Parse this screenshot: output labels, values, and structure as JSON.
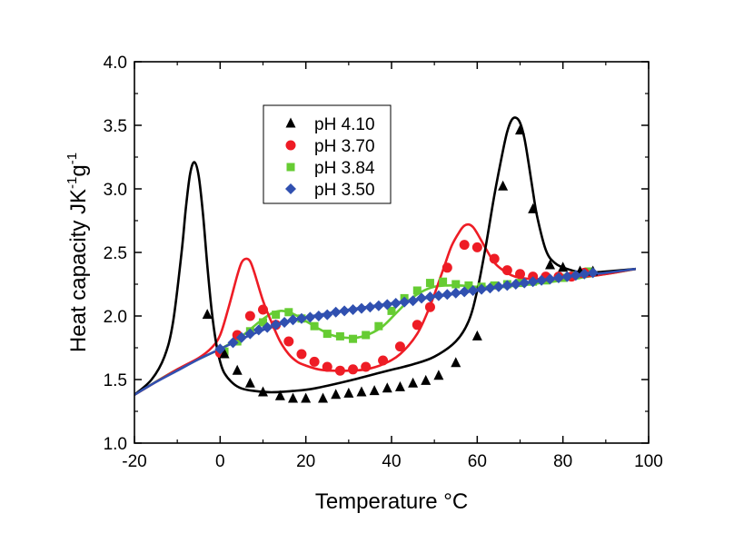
{
  "chart_data": {
    "type": "scatter",
    "title": "",
    "xlabel_main": "Temperature ",
    "xlabel_unit": "°C",
    "ylabel_main": "Heat capacity JK",
    "ylabel_exp1": "-1",
    "ylabel_mid": "g",
    "ylabel_exp2": "-1",
    "xlim": [
      -20,
      100
    ],
    "ylim": [
      1.0,
      4.0
    ],
    "xticks": [
      -20,
      0,
      20,
      40,
      60,
      80,
      100
    ],
    "yticks": [
      1.0,
      1.5,
      2.0,
      2.5,
      3.0,
      3.5,
      4.0
    ],
    "xtick_labels": [
      "-20",
      "0",
      "20",
      "40",
      "60",
      "80",
      "100"
    ],
    "ytick_labels": [
      "1.0",
      "1.5",
      "2.0",
      "2.5",
      "3.0",
      "3.5",
      "4.0"
    ],
    "grid": false,
    "legend_position": "top-left",
    "series": [
      {
        "name": "pH 4.10",
        "marker": "triangle",
        "color": "#000000",
        "x": [
          -3,
          1,
          4,
          7,
          10,
          14,
          17,
          20,
          24,
          27,
          30,
          33,
          36,
          39,
          42,
          45,
          48,
          51,
          55,
          60,
          66,
          70,
          73,
          77,
          80,
          84,
          87
        ],
        "y": [
          2.01,
          1.7,
          1.57,
          1.47,
          1.4,
          1.37,
          1.35,
          1.35,
          1.35,
          1.38,
          1.39,
          1.4,
          1.41,
          1.43,
          1.44,
          1.47,
          1.49,
          1.53,
          1.63,
          1.84,
          3.02,
          3.46,
          2.84,
          2.4,
          2.38,
          2.35,
          2.35
        ],
        "fit_x": [
          -20,
          -16,
          -13,
          -11,
          -9,
          -8,
          -7,
          -6,
          -5,
          -4,
          -3,
          -2,
          -1,
          0,
          1,
          3,
          5,
          8,
          12,
          17,
          22,
          30,
          38,
          45,
          50,
          55,
          58,
          60,
          62,
          64,
          66,
          67,
          68,
          69,
          70,
          71,
          72,
          73,
          74,
          76,
          78,
          81,
          85,
          90,
          97
        ],
        "fit_y": [
          1.38,
          1.5,
          1.68,
          1.95,
          2.5,
          2.85,
          3.12,
          3.21,
          3.1,
          2.8,
          2.4,
          2.05,
          1.8,
          1.64,
          1.55,
          1.47,
          1.43,
          1.41,
          1.4,
          1.41,
          1.43,
          1.49,
          1.56,
          1.62,
          1.68,
          1.8,
          1.96,
          2.2,
          2.55,
          2.95,
          3.3,
          3.45,
          3.54,
          3.56,
          3.52,
          3.4,
          3.2,
          2.98,
          2.78,
          2.52,
          2.42,
          2.37,
          2.34,
          2.35,
          2.37
        ]
      },
      {
        "name": "pH 3.70",
        "marker": "circle",
        "color": "#ee1c25",
        "x": [
          0,
          4,
          7,
          10,
          13,
          16,
          19,
          22,
          25,
          28,
          31,
          34,
          38,
          42,
          46,
          49,
          53,
          57,
          60,
          64,
          67,
          70,
          73,
          76,
          79,
          82,
          85
        ],
        "y": [
          1.71,
          1.85,
          2.0,
          2.05,
          1.93,
          1.8,
          1.7,
          1.64,
          1.6,
          1.57,
          1.58,
          1.6,
          1.65,
          1.76,
          1.93,
          2.07,
          2.38,
          2.56,
          2.54,
          2.45,
          2.36,
          2.33,
          2.31,
          2.31,
          2.31,
          2.31,
          2.34
        ],
        "fit_x": [
          -20,
          -10,
          -5,
          -2,
          0,
          2,
          4,
          5,
          6,
          7,
          8,
          10,
          12,
          14,
          16,
          18,
          20,
          23,
          26,
          30,
          34,
          38,
          42,
          46,
          49,
          52,
          54,
          56,
          57,
          58,
          59,
          60,
          62,
          64,
          66,
          68,
          70,
          74,
          80,
          88,
          97
        ],
        "fit_y": [
          1.38,
          1.58,
          1.67,
          1.75,
          1.85,
          2.07,
          2.32,
          2.42,
          2.45,
          2.43,
          2.34,
          2.12,
          1.95,
          1.8,
          1.7,
          1.64,
          1.61,
          1.58,
          1.57,
          1.57,
          1.58,
          1.62,
          1.7,
          1.86,
          2.08,
          2.36,
          2.55,
          2.67,
          2.71,
          2.72,
          2.7,
          2.65,
          2.53,
          2.42,
          2.36,
          2.32,
          2.3,
          2.29,
          2.3,
          2.32,
          2.37
        ]
      },
      {
        "name": "pH 3.84",
        "marker": "square",
        "color": "#66cc33",
        "x": [
          1,
          4,
          7,
          10,
          13,
          16,
          19,
          22,
          25,
          28,
          31,
          34,
          37,
          40,
          43,
          46,
          49,
          52,
          55,
          58,
          61,
          64,
          67,
          70,
          73,
          76,
          80,
          83,
          86
        ],
        "y": [
          1.72,
          1.8,
          1.88,
          1.95,
          2.01,
          2.03,
          1.98,
          1.92,
          1.86,
          1.84,
          1.82,
          1.85,
          1.92,
          2.04,
          2.14,
          2.2,
          2.26,
          2.27,
          2.25,
          2.24,
          2.23,
          2.24,
          2.25,
          2.26,
          2.27,
          2.28,
          2.3,
          2.32,
          2.35
        ],
        "fit_x": [
          -20,
          -10,
          0,
          5,
          9,
          12,
          14,
          16,
          18,
          20,
          23,
          26,
          29,
          32,
          35,
          38,
          41,
          44,
          47,
          50,
          53,
          56,
          60,
          65,
          70,
          75,
          80,
          86,
          92,
          97
        ],
        "fit_y": [
          1.38,
          1.58,
          1.74,
          1.84,
          1.95,
          2.02,
          2.04,
          2.03,
          2.0,
          1.96,
          1.9,
          1.85,
          1.83,
          1.83,
          1.86,
          1.92,
          2.02,
          2.12,
          2.19,
          2.23,
          2.24,
          2.24,
          2.23,
          2.23,
          2.24,
          2.26,
          2.28,
          2.31,
          2.34,
          2.37
        ]
      },
      {
        "name": "pH 3.50",
        "marker": "diamond",
        "color": "#3050b0",
        "x": [
          0,
          3,
          5,
          7,
          9,
          11,
          13,
          15,
          17,
          19,
          21,
          23,
          25,
          27,
          29,
          31,
          33,
          35,
          37,
          39,
          41,
          43,
          45,
          47,
          49,
          51,
          53,
          55,
          57,
          59,
          61,
          63,
          65,
          67,
          69,
          71,
          73,
          75,
          77,
          79,
          81,
          83,
          85,
          87
        ],
        "y": [
          1.74,
          1.79,
          1.83,
          1.86,
          1.89,
          1.91,
          1.93,
          1.95,
          1.97,
          1.98,
          1.99,
          2.0,
          2.01,
          2.03,
          2.04,
          2.05,
          2.06,
          2.07,
          2.08,
          2.09,
          2.1,
          2.11,
          2.12,
          2.14,
          2.15,
          2.16,
          2.17,
          2.18,
          2.19,
          2.2,
          2.21,
          2.22,
          2.23,
          2.24,
          2.25,
          2.26,
          2.27,
          2.28,
          2.29,
          2.3,
          2.31,
          2.32,
          2.33,
          2.34
        ],
        "fit_x": [
          -20,
          -15,
          -10,
          -5,
          0,
          5,
          10,
          15,
          20,
          25,
          30,
          40,
          50,
          60,
          70,
          80,
          90,
          97
        ],
        "fit_y": [
          1.38,
          1.48,
          1.57,
          1.66,
          1.74,
          1.82,
          1.89,
          1.95,
          1.99,
          2.02,
          2.05,
          2.1,
          2.15,
          2.2,
          2.25,
          2.3,
          2.34,
          2.37
        ]
      }
    ]
  }
}
